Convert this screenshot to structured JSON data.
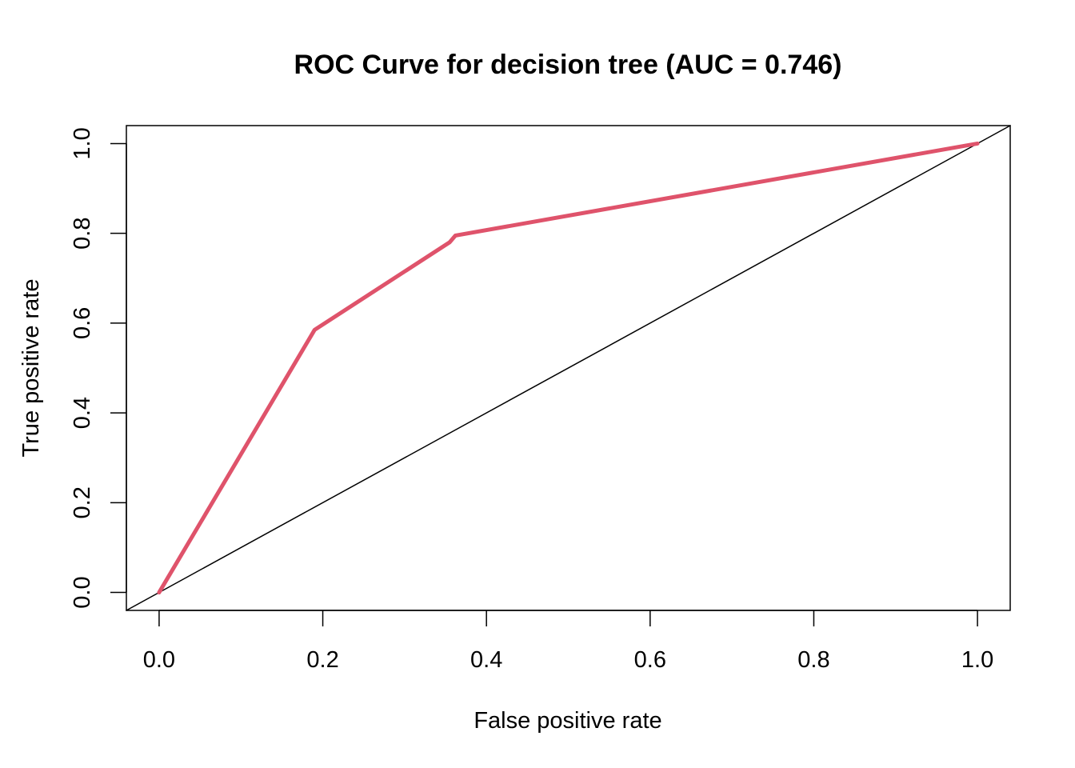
{
  "chart_data": {
    "type": "line",
    "title": "ROC Curve for decision tree (AUC = 0.746)",
    "xlabel": "False positive rate",
    "ylabel": "True positive rate",
    "xlim": [
      -0.04,
      1.04
    ],
    "ylim": [
      -0.04,
      1.04
    ],
    "xticks": [
      0.0,
      0.2,
      0.4,
      0.6,
      0.8,
      1.0
    ],
    "yticks": [
      0.0,
      0.2,
      0.4,
      0.6,
      0.8,
      1.0
    ],
    "tick_labels": [
      "0.0",
      "0.2",
      "0.4",
      "0.6",
      "0.8",
      "1.0"
    ],
    "grid": false,
    "series": [
      {
        "color": "#DF536B",
        "x": [
          0.0,
          0.19,
          0.355,
          0.362,
          1.0
        ],
        "y": [
          0.0,
          0.585,
          0.78,
          0.795,
          1.0
        ]
      },
      {
        "color": "#000000",
        "x": [
          -0.04,
          1.04
        ],
        "y": [
          -0.04,
          1.04
        ]
      }
    ]
  }
}
